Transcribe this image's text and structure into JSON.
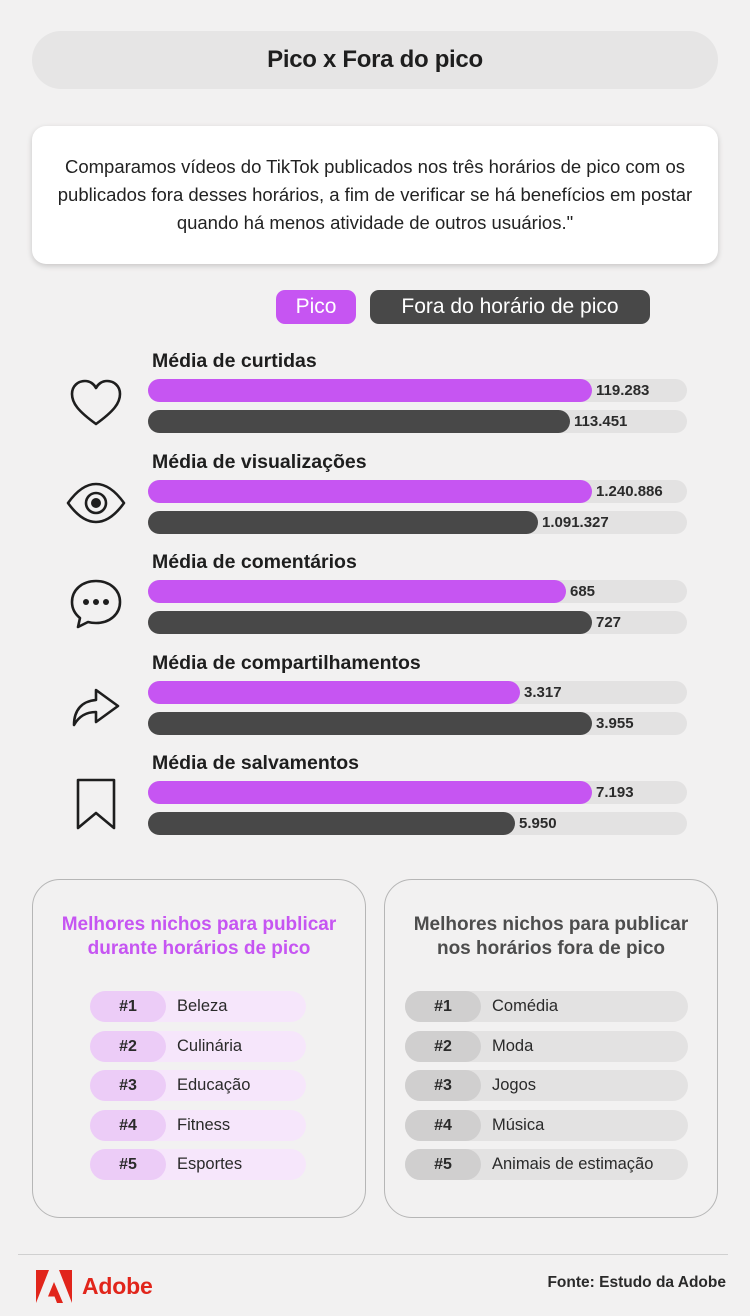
{
  "title": "Pico x Fora do pico",
  "intro": "Comparamos vídeos do TikTok publicados nos três horários de pico com os publicados fora desses horários, a fim de verificar se há benefícios em postar quando há menos atividade de outros usuários.\"",
  "legend": {
    "pico": "Pico",
    "fora": "Fora do horário de pico"
  },
  "colors": {
    "pico": "#c655f2",
    "fora": "#484848",
    "track": "#e3e2e2",
    "adobe_red": "#e1251b"
  },
  "chart_data": {
    "type": "bar",
    "orientation": "horizontal",
    "series_names": [
      "Pico",
      "Fora do horário de pico"
    ],
    "metrics": [
      {
        "label": "Média de curtidas",
        "icon": "heart-icon",
        "pico": 119283,
        "fora": 113451,
        "pico_label": "119.283",
        "fora_label": "113.451"
      },
      {
        "label": "Média de visualizações",
        "icon": "eye-icon",
        "pico": 1240886,
        "fora": 1091327,
        "pico_label": "1.240.886",
        "fora_label": "1.091.327"
      },
      {
        "label": "Média de comentários",
        "icon": "speech-bubble-icon",
        "pico": 685,
        "fora": 727,
        "pico_label": "685",
        "fora_label": "727"
      },
      {
        "label": "Média de compartilhamentos",
        "icon": "share-arrow-icon",
        "pico": 3317,
        "fora": 3955,
        "pico_label": "3.317",
        "fora_label": "3.955"
      },
      {
        "label": "Média de salvamentos",
        "icon": "bookmark-icon",
        "pico": 7193,
        "fora": 5950,
        "pico_label": "7.193",
        "fora_label": "5.950"
      }
    ]
  },
  "niches_pico": {
    "title_line1": "Melhores nichos para publicar",
    "title_line2": "durante horários de pico",
    "items": [
      {
        "rank": "#1",
        "label": "Beleza"
      },
      {
        "rank": "#2",
        "label": "Culinária"
      },
      {
        "rank": "#3",
        "label": "Educação"
      },
      {
        "rank": "#4",
        "label": "Fitness"
      },
      {
        "rank": "#5",
        "label": "Esportes"
      }
    ]
  },
  "niches_fora": {
    "title_line1": "Melhores nichos para publicar",
    "title_line2": "nos horários fora de pico",
    "items": [
      {
        "rank": "#1",
        "label": "Comédia"
      },
      {
        "rank": "#2",
        "label": "Moda"
      },
      {
        "rank": "#3",
        "label": "Jogos"
      },
      {
        "rank": "#4",
        "label": "Música"
      },
      {
        "rank": "#5",
        "label": "Animais de estimação"
      }
    ]
  },
  "footer": {
    "brand": "Adobe",
    "source": "Fonte: Estudo da Adobe"
  }
}
